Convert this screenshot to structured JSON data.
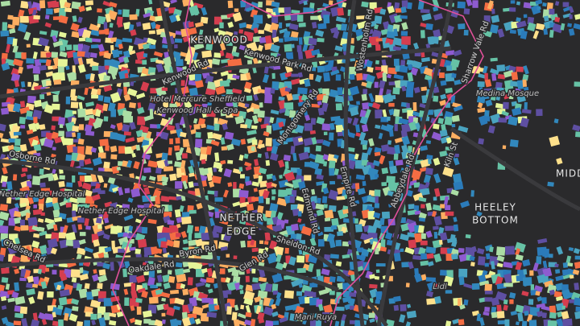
{
  "places": [
    {
      "label": "KENWOOD"
    },
    {
      "label": "NETHER"
    },
    {
      "label": "EDGE"
    },
    {
      "label": "HEELEY"
    },
    {
      "label": "BOTTOM"
    },
    {
      "label": "MIDD"
    }
  ],
  "streets": [
    {
      "label": "Kenwood Rd"
    },
    {
      "label": "Kenwood Park Rd"
    },
    {
      "label": "Montgomery Rd"
    },
    {
      "label": "Osborne Rd"
    },
    {
      "label": "Sheldon Rd"
    },
    {
      "label": "Oakdale Rd"
    },
    {
      "label": "Byron Rd"
    },
    {
      "label": "Glen Rd"
    },
    {
      "label": "Chelsea Rd"
    },
    {
      "label": "Edmund Rd"
    },
    {
      "label": "Empire Rd"
    },
    {
      "label": "Abbeydale Rd"
    },
    {
      "label": "Kiln St"
    },
    {
      "label": "Wostenholm Rd"
    },
    {
      "label": "Sharrow Vale Rd"
    }
  ],
  "pois": [
    {
      "label": "Hotel Mercure Sheffield"
    },
    {
      "label": "Kenwood Hall & Spa"
    },
    {
      "label": "Nether Edge Hospital"
    },
    {
      "label": "Nether Edge Hospital"
    },
    {
      "label": "Medina Mosque"
    },
    {
      "label": "Lidl"
    },
    {
      "label": "Mani Ruya"
    }
  ]
}
